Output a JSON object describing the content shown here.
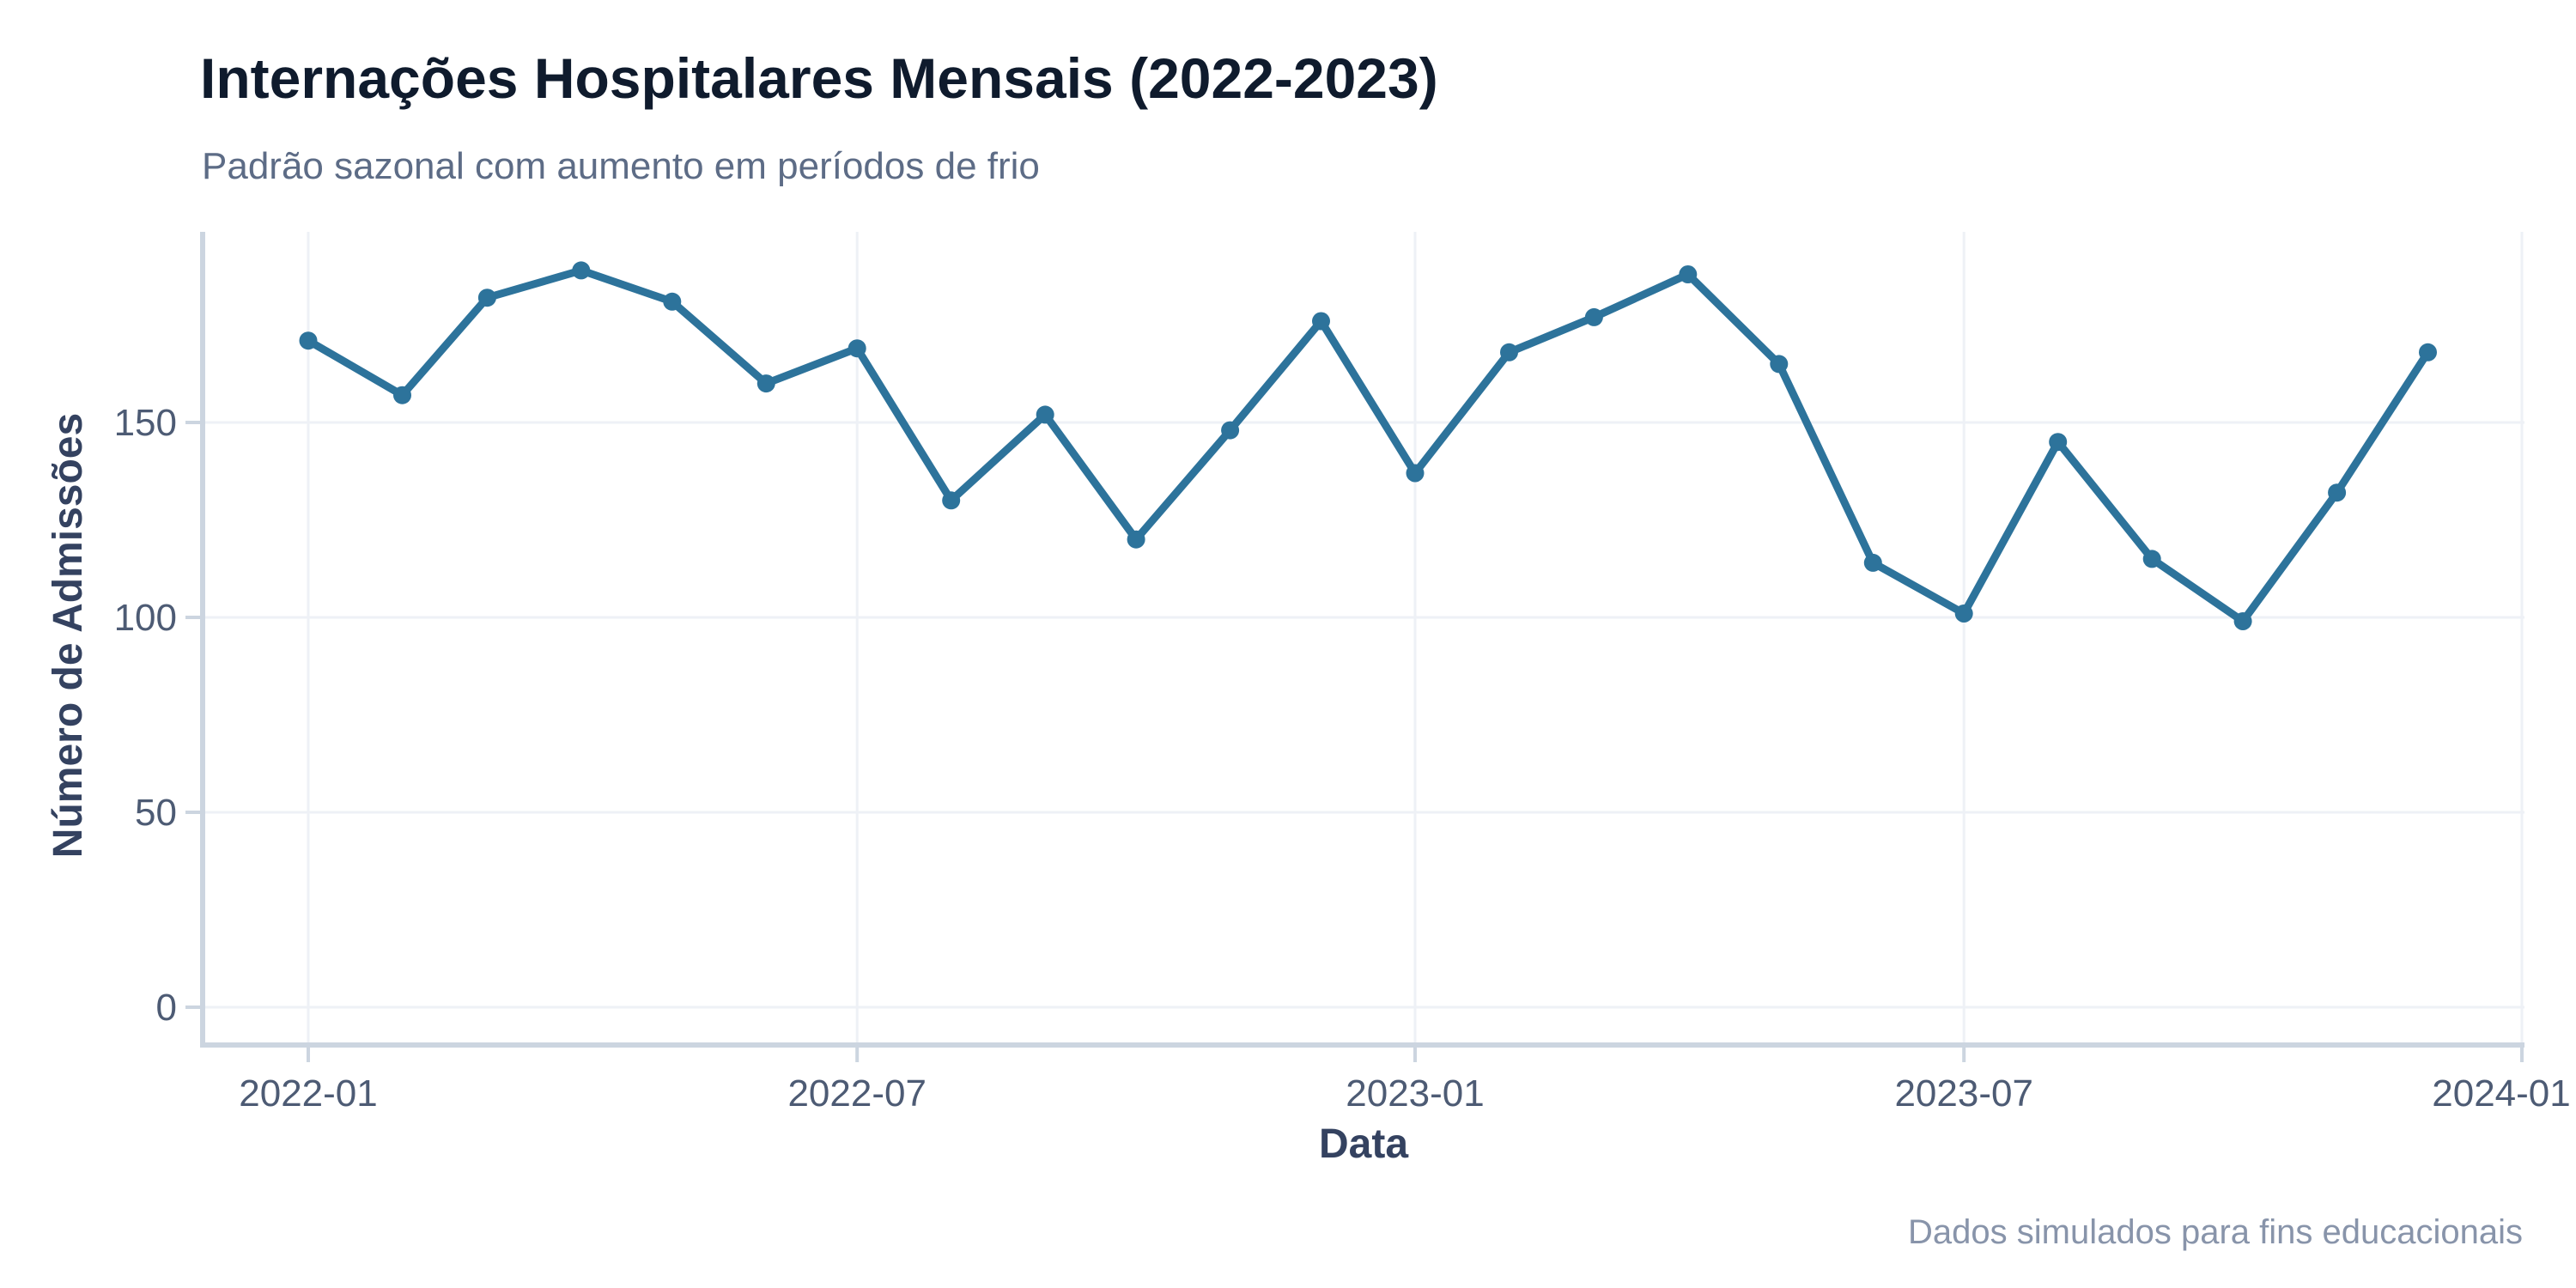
{
  "header": {
    "title": "Internações Hospitalares Mensais (2022-2023)",
    "subtitle": "Padrão sazonal com aumento em períodos de frio"
  },
  "caption": "Dados simulados para fins educacionais",
  "chart_data": {
    "type": "line",
    "title": "Internações Hospitalares Mensais (2022-2023)",
    "subtitle": "Padrão sazonal com aumento em períodos de frio",
    "xlabel": "Data",
    "ylabel": "Número de Admissões",
    "caption": "Dados simulados para fins educacionais",
    "legend_position": "none",
    "grid": true,
    "x": [
      "2022-01",
      "2022-02",
      "2022-03",
      "2022-04",
      "2022-05",
      "2022-06",
      "2022-07",
      "2022-08",
      "2022-09",
      "2022-10",
      "2022-11",
      "2022-12",
      "2023-01",
      "2023-02",
      "2023-03",
      "2023-04",
      "2023-05",
      "2023-06",
      "2023-07",
      "2023-08",
      "2023-09",
      "2023-10",
      "2023-11",
      "2023-12"
    ],
    "series": [
      {
        "name": "Número de Admissões",
        "values": [
          171,
          157,
          182,
          189,
          181,
          160,
          169,
          130,
          152,
          120,
          148,
          176,
          137,
          168,
          177,
          188,
          165,
          114,
          101,
          145,
          115,
          99,
          132,
          168
        ]
      }
    ],
    "x_ticks": [
      "2022-01",
      "2022-07",
      "2023-01",
      "2023-07",
      "2024-01"
    ],
    "y_ticks": [
      0,
      50,
      100,
      150
    ],
    "ylim": [
      0,
      200
    ],
    "colors": {
      "line": "#2d739b",
      "marker": "#2d739b",
      "grid": "#eef1f6",
      "spine": "#ccd5e0",
      "tick": "#ccd5e0",
      "tick_label": "#4d5b74",
      "axis_label": "#344260",
      "title": "#0f1b2d",
      "subtitle": "#5d6c86",
      "caption": "#8894aa",
      "background": "#ffffff"
    }
  }
}
